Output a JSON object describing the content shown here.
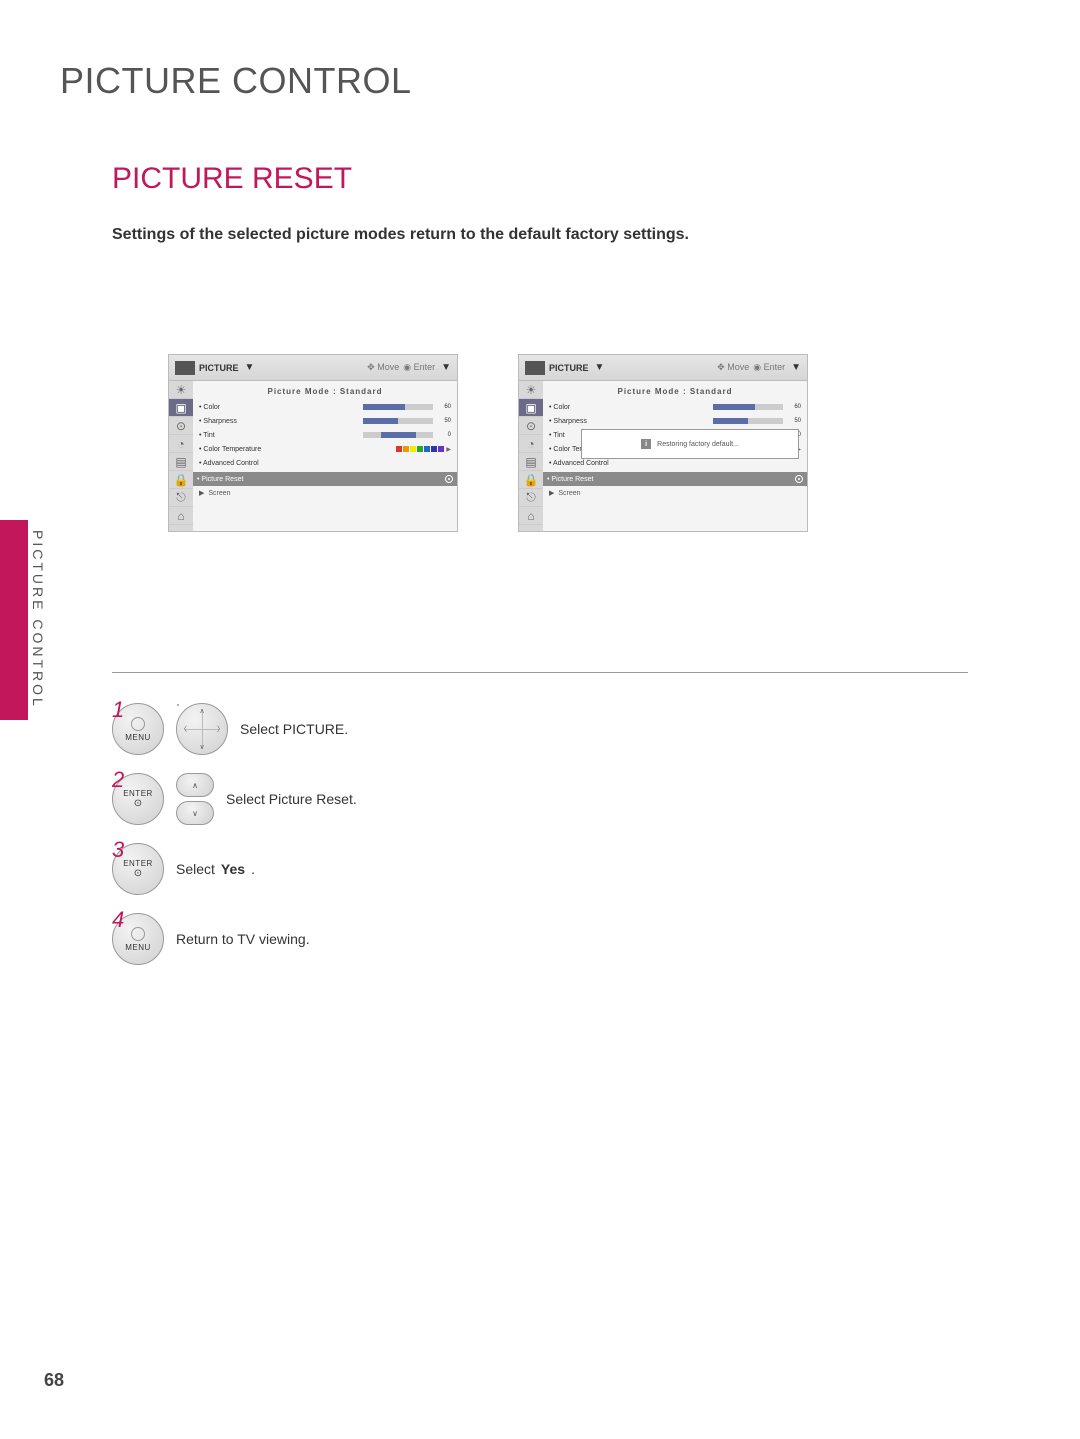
{
  "colors": {
    "accent": "#c2185b",
    "heading": "#555555",
    "text": "#333333",
    "slider_fill": "#5b6da8",
    "reset_row_bg": "#8a8a8a"
  },
  "page": {
    "number": "68",
    "title": "PICTURE CONTROL",
    "side_label": "PICTURE CONTROL"
  },
  "section": {
    "title": "PICTURE RESET",
    "description": "Settings of the selected picture modes return to the default factory settings."
  },
  "osd": {
    "titlebar": {
      "menu_name": "PICTURE",
      "move": "Move",
      "enter": "Enter"
    },
    "content_header": "Picture Mode : Standard",
    "rows": [
      {
        "label": "• Color",
        "value": 60,
        "max": 100
      },
      {
        "label": "• Sharpness",
        "value": 50,
        "max": 100
      },
      {
        "label": "• Tint",
        "value": 0,
        "max": 100,
        "tint": true
      },
      {
        "label": "• Color Temperature",
        "colorbar": true
      }
    ],
    "adv_label": "• Advanced Control",
    "reset_label": "• Picture Reset",
    "screen_label": "Screen",
    "popup_text": "Restoring factory default..."
  },
  "steps": {
    "s1": {
      "n": "1",
      "btn1": "MENU",
      "text": "Select PICTURE."
    },
    "s2": {
      "n": "2",
      "btn1": "ENTER",
      "text": "Select Picture Reset."
    },
    "s3": {
      "n": "3",
      "btn1": "ENTER",
      "text_prefix": "Select ",
      "text_kw": "Yes",
      "text_suffix": "."
    },
    "s4": {
      "n": "4",
      "btn1": "MENU",
      "text": "Return to TV viewing."
    }
  }
}
